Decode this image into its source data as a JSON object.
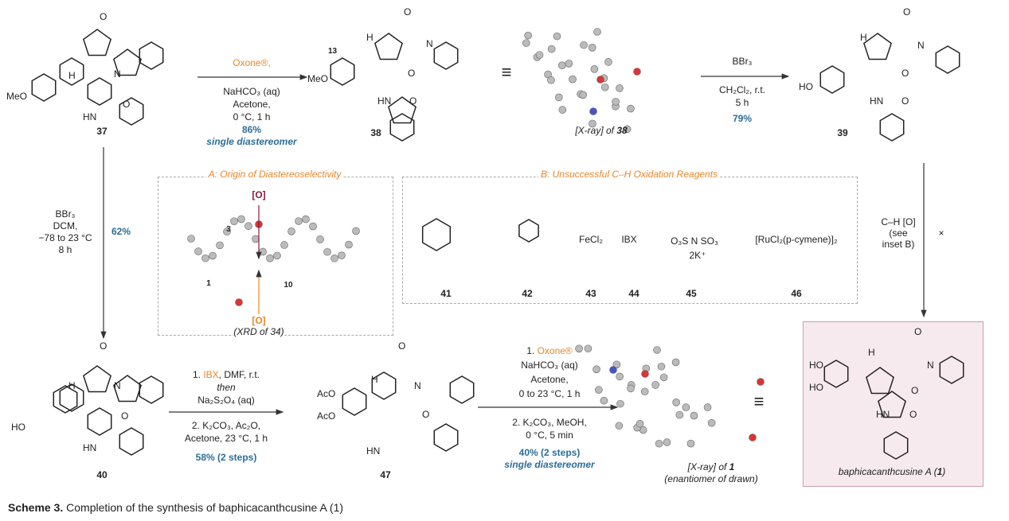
{
  "compounds": {
    "c37": {
      "label": "37",
      "atoms": [
        "MeO",
        "H",
        "N",
        "O",
        "O",
        "HN"
      ]
    },
    "c38": {
      "label": "38",
      "atoms": [
        "13",
        "MeO",
        "H",
        "N",
        "O",
        "O",
        "HN",
        "O"
      ]
    },
    "c39": {
      "label": "39",
      "atoms": [
        "HO",
        "H",
        "N",
        "O",
        "O",
        "HN",
        "O"
      ]
    },
    "c40": {
      "label": "40",
      "atoms": [
        "HO",
        "H",
        "N",
        "O",
        "O",
        "HN"
      ]
    },
    "c47": {
      "label": "47",
      "atoms": [
        "AcO",
        "AcO",
        "H",
        "N",
        "O",
        "O",
        "HN"
      ]
    },
    "c1": {
      "label": "baphicacanthcusine A (",
      "label_num": "1",
      "label_end": ")",
      "atoms": [
        "HO",
        "HO",
        "H",
        "N",
        "O",
        "O",
        "HN",
        "O"
      ]
    }
  },
  "xray38": {
    "label": "[X-ray] of ",
    "label_num": "38"
  },
  "xray1": {
    "label": "[X-ray] of ",
    "label_num": "1",
    "sub": "(enantiomer of drawn)"
  },
  "equiv_symbol": "≡",
  "reactions": {
    "r1": {
      "reagent": "Oxone®,",
      "lines": [
        "NaHCO₃ (aq)",
        "Acetone,",
        "0 °C, 1 h"
      ],
      "yield": "86%",
      "note": "single diastereomer"
    },
    "r2": {
      "reagent": "BBr₃",
      "lines": [
        "CH₂Cl₂, r.t.",
        "5 h"
      ],
      "yield": "79%"
    },
    "r3": {
      "lines": [
        "BBr₃",
        "DCM,",
        "−78 to 23 °C",
        "8 h"
      ],
      "yield": "62%"
    },
    "r4": {
      "step1_pre": "1. ",
      "step1_reagent": "IBX",
      "step1_post": ", DMF, r.t.",
      "then": "then",
      "step1_b": "Na₂S₂O₄ (aq)",
      "step2": [
        "2. K₂CO₃, Ac₂O,",
        "Acetone, 23 °C, 1 h"
      ],
      "yield": "58% (2 steps)"
    },
    "r5": {
      "step1_pre": "1. ",
      "step1_reagent": "Oxone®",
      "step1": [
        "NaHCO₃ (aq)",
        "Acetone,",
        "0 to 23 °C, 1 h"
      ],
      "step2": [
        "2. K₂CO₃, MeOH,",
        "0 °C, 5 min"
      ],
      "yield": "40% (2 steps)",
      "note": "single diastereomer"
    },
    "r6": {
      "lines": [
        "C–H [O]",
        "(see",
        "inset B)"
      ],
      "blocked": "×"
    }
  },
  "insetA": {
    "title": "A: Origin of Diastereoselectivity",
    "top_oxidant": "[O]",
    "bottom_oxidant": "[O]",
    "atom_labels": [
      "3",
      "1",
      "10"
    ],
    "caption": "(XRD of 34)"
  },
  "insetB": {
    "title": "B: Unsuccessful C–H Oxidation Reagents",
    "reagents": [
      {
        "id": "41",
        "text": ""
      },
      {
        "id": "42",
        "text": ""
      },
      {
        "id": "43",
        "text": "FeCl₂"
      },
      {
        "id": "44",
        "text": "IBX"
      },
      {
        "id": "45",
        "text": "O₃S  N  SO₃",
        "extra": "2K⁺"
      },
      {
        "id": "46",
        "text": "[RuCl₂(p-cymene)]₂"
      }
    ]
  },
  "caption": {
    "bold": "Scheme 3.",
    "text": " Completion of the synthesis of baphicacanthcusine A (1)"
  },
  "colors": {
    "reagent_orange": "#e8862a",
    "yield_blue": "#2b6e96",
    "product_box": "#f7eaee",
    "oxidant_maroon": "#8a1c3c"
  }
}
